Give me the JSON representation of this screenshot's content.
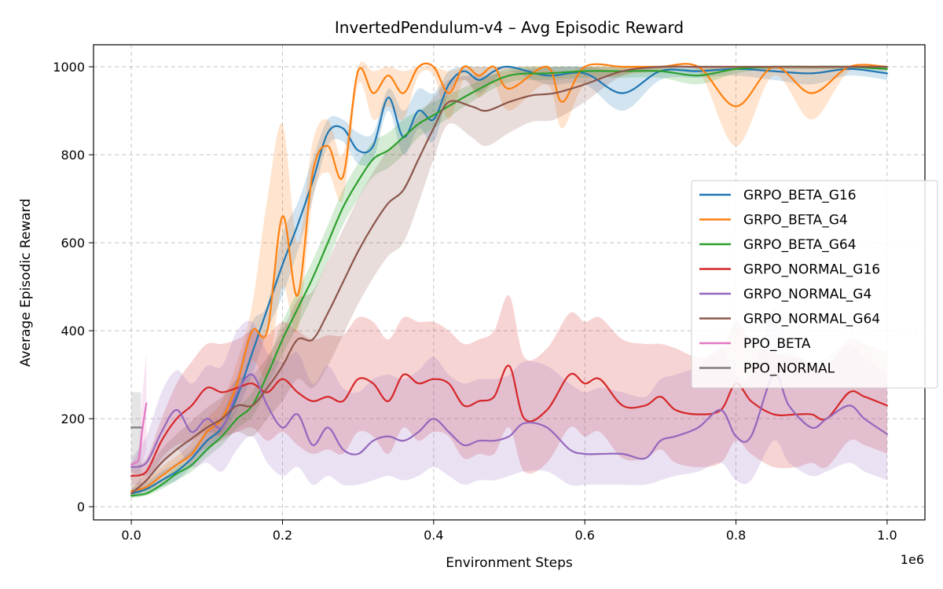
{
  "chart_data": {
    "type": "line",
    "title": "InvertedPendulum-v4 – Avg Episodic Reward",
    "xlabel": "Environment Steps",
    "ylabel": "Average Episodic Reward",
    "x_offset_label": "1e6",
    "xlim": [
      -0.05,
      1.05
    ],
    "ylim": [
      -30,
      1050
    ],
    "xticks": [
      0.0,
      0.2,
      0.4,
      0.6,
      0.8,
      1.0
    ],
    "xtick_labels": [
      "0.0",
      "0.2",
      "0.4",
      "0.6",
      "0.8",
      "1.0"
    ],
    "yticks": [
      0,
      200,
      400,
      600,
      800,
      1000
    ],
    "ytick_labels": [
      "0",
      "200",
      "400",
      "600",
      "800",
      "1000"
    ],
    "grid": true,
    "legend_position": "center-right",
    "series": [
      {
        "name": "GRPO_BETA_G16",
        "color": "#1f77b4",
        "x": [
          0.0,
          0.02,
          0.04,
          0.06,
          0.08,
          0.1,
          0.12,
          0.14,
          0.16,
          0.18,
          0.2,
          0.22,
          0.24,
          0.26,
          0.28,
          0.3,
          0.32,
          0.34,
          0.36,
          0.38,
          0.4,
          0.42,
          0.44,
          0.46,
          0.48,
          0.5,
          0.55,
          0.6,
          0.65,
          0.7,
          0.75,
          0.8,
          0.85,
          0.9,
          0.95,
          1.0
        ],
        "y": [
          30,
          40,
          60,
          80,
          110,
          150,
          180,
          250,
          350,
          450,
          550,
          640,
          740,
          850,
          860,
          810,
          820,
          930,
          840,
          900,
          880,
          960,
          990,
          970,
          990,
          1000,
          980,
          985,
          940,
          990,
          990,
          995,
          990,
          985,
          995,
          985
        ],
        "upper": [
          40,
          55,
          80,
          100,
          130,
          175,
          210,
          300,
          420,
          460,
          620,
          690,
          790,
          880,
          880,
          850,
          850,
          950,
          900,
          950,
          940,
          990,
          1000,
          1000,
          1000,
          1000,
          1000,
          1000,
          990,
          1000,
          1000,
          1000,
          1000,
          1000,
          1000,
          1000
        ],
        "lower": [
          25,
          30,
          45,
          60,
          90,
          125,
          160,
          220,
          300,
          400,
          480,
          580,
          700,
          820,
          830,
          780,
          790,
          900,
          800,
          860,
          830,
          940,
          970,
          940,
          970,
          990,
          960,
          960,
          900,
          970,
          975,
          980,
          970,
          960,
          980,
          970
        ]
      },
      {
        "name": "GRPO_BETA_G4",
        "color": "#ff7f0e",
        "x": [
          0.0,
          0.02,
          0.04,
          0.06,
          0.08,
          0.1,
          0.12,
          0.14,
          0.16,
          0.18,
          0.2,
          0.22,
          0.24,
          0.26,
          0.28,
          0.3,
          0.32,
          0.34,
          0.36,
          0.38,
          0.4,
          0.42,
          0.44,
          0.46,
          0.48,
          0.5,
          0.55,
          0.57,
          0.6,
          0.65,
          0.7,
          0.75,
          0.8,
          0.85,
          0.9,
          0.95,
          1.0
        ],
        "y": [
          35,
          45,
          70,
          95,
          120,
          170,
          200,
          280,
          400,
          400,
          660,
          480,
          760,
          820,
          750,
          990,
          940,
          980,
          940,
          1000,
          1000,
          940,
          1000,
          980,
          1000,
          950,
          1000,
          920,
          1000,
          1000,
          1000,
          1000,
          910,
          1000,
          940,
          1000,
          1000
        ],
        "upper": [
          45,
          60,
          90,
          115,
          145,
          200,
          240,
          330,
          460,
          700,
          870,
          600,
          830,
          880,
          800,
          1000,
          990,
          1000,
          990,
          1000,
          1000,
          990,
          1000,
          1000,
          1000,
          1000,
          1000,
          980,
          1000,
          1000,
          1000,
          1000,
          1000,
          1000,
          1000,
          1000,
          1000
        ],
        "lower": [
          30,
          35,
          55,
          80,
          100,
          145,
          170,
          240,
          330,
          300,
          500,
          400,
          700,
          760,
          700,
          960,
          880,
          910,
          880,
          980,
          980,
          880,
          970,
          930,
          960,
          900,
          960,
          860,
          960,
          980,
          990,
          990,
          820,
          980,
          880,
          990,
          990
        ]
      },
      {
        "name": "GRPO_BETA_G64",
        "color": "#2ca02c",
        "x": [
          0.0,
          0.02,
          0.04,
          0.06,
          0.08,
          0.1,
          0.12,
          0.14,
          0.16,
          0.18,
          0.2,
          0.22,
          0.24,
          0.26,
          0.28,
          0.3,
          0.32,
          0.34,
          0.36,
          0.38,
          0.4,
          0.45,
          0.5,
          0.55,
          0.6,
          0.65,
          0.7,
          0.75,
          0.8,
          0.85,
          0.9,
          0.95,
          1.0
        ],
        "y": [
          25,
          30,
          50,
          75,
          95,
          130,
          160,
          200,
          230,
          300,
          380,
          450,
          520,
          600,
          680,
          740,
          790,
          810,
          840,
          870,
          890,
          940,
          980,
          985,
          990,
          990,
          990,
          980,
          995,
          1000,
          1000,
          1000,
          995
        ],
        "upper": [
          30,
          38,
          62,
          90,
          112,
          150,
          180,
          225,
          260,
          330,
          420,
          490,
          560,
          640,
          720,
          780,
          830,
          850,
          880,
          900,
          920,
          960,
          995,
          1000,
          1000,
          1000,
          1000,
          995,
          1000,
          1000,
          1000,
          1000,
          1000
        ],
        "lower": [
          20,
          25,
          40,
          60,
          80,
          112,
          140,
          178,
          205,
          270,
          345,
          410,
          480,
          560,
          640,
          700,
          750,
          770,
          800,
          840,
          860,
          920,
          965,
          970,
          975,
          975,
          975,
          960,
          985,
          995,
          995,
          995,
          990
        ]
      },
      {
        "name": "GRPO_NORMAL_G16",
        "color": "#d62728",
        "x": [
          0.0,
          0.02,
          0.04,
          0.06,
          0.08,
          0.1,
          0.12,
          0.14,
          0.16,
          0.18,
          0.2,
          0.22,
          0.24,
          0.26,
          0.28,
          0.3,
          0.32,
          0.34,
          0.36,
          0.38,
          0.4,
          0.42,
          0.44,
          0.46,
          0.48,
          0.5,
          0.52,
          0.55,
          0.58,
          0.6,
          0.62,
          0.65,
          0.68,
          0.7,
          0.72,
          0.75,
          0.78,
          0.8,
          0.82,
          0.85,
          0.88,
          0.9,
          0.92,
          0.95,
          0.97,
          1.0
        ],
        "y": [
          70,
          80,
          150,
          200,
          230,
          270,
          260,
          270,
          280,
          260,
          290,
          260,
          240,
          250,
          240,
          290,
          280,
          240,
          300,
          280,
          290,
          280,
          230,
          240,
          250,
          320,
          200,
          220,
          300,
          280,
          290,
          230,
          230,
          250,
          220,
          210,
          220,
          280,
          240,
          210,
          210,
          210,
          200,
          260,
          250,
          230
        ],
        "upper": [
          90,
          110,
          200,
          280,
          330,
          370,
          370,
          380,
          400,
          390,
          420,
          400,
          380,
          390,
          390,
          430,
          420,
          380,
          430,
          420,
          420,
          400,
          370,
          380,
          400,
          480,
          340,
          360,
          440,
          420,
          430,
          380,
          370,
          370,
          360,
          340,
          360,
          420,
          380,
          350,
          340,
          330,
          320,
          380,
          370,
          350
        ],
        "lower": [
          50,
          55,
          110,
          140,
          150,
          170,
          160,
          170,
          180,
          150,
          170,
          140,
          120,
          130,
          120,
          170,
          160,
          120,
          180,
          150,
          170,
          160,
          110,
          120,
          120,
          180,
          80,
          100,
          180,
          160,
          170,
          110,
          110,
          130,
          100,
          90,
          100,
          150,
          120,
          90,
          90,
          100,
          90,
          150,
          140,
          120
        ]
      },
      {
        "name": "GRPO_NORMAL_G4",
        "color": "#9467bd",
        "x": [
          0.0,
          0.02,
          0.04,
          0.06,
          0.08,
          0.1,
          0.12,
          0.14,
          0.16,
          0.18,
          0.2,
          0.22,
          0.24,
          0.26,
          0.28,
          0.3,
          0.32,
          0.34,
          0.36,
          0.38,
          0.4,
          0.42,
          0.44,
          0.46,
          0.48,
          0.5,
          0.52,
          0.55,
          0.58,
          0.6,
          0.62,
          0.65,
          0.68,
          0.7,
          0.72,
          0.75,
          0.78,
          0.8,
          0.82,
          0.85,
          0.87,
          0.9,
          0.92,
          0.95,
          0.97,
          1.0
        ],
        "y": [
          90,
          100,
          170,
          220,
          170,
          200,
          180,
          260,
          300,
          230,
          180,
          210,
          140,
          180,
          130,
          120,
          150,
          160,
          150,
          170,
          200,
          170,
          140,
          150,
          150,
          160,
          190,
          180,
          130,
          120,
          120,
          120,
          110,
          150,
          160,
          180,
          220,
          160,
          160,
          300,
          230,
          180,
          200,
          230,
          200,
          165
        ],
        "upper": [
          110,
          160,
          260,
          310,
          280,
          320,
          320,
          400,
          420,
          350,
          330,
          350,
          280,
          320,
          270,
          260,
          290,
          300,
          290,
          310,
          340,
          300,
          280,
          290,
          290,
          300,
          330,
          320,
          280,
          260,
          270,
          260,
          250,
          290,
          300,
          320,
          360,
          300,
          300,
          450,
          370,
          320,
          340,
          370,
          340,
          300
        ],
        "lower": [
          80,
          70,
          100,
          130,
          90,
          100,
          80,
          130,
          160,
          100,
          70,
          90,
          50,
          70,
          50,
          50,
          60,
          70,
          60,
          70,
          90,
          70,
          50,
          60,
          60,
          70,
          80,
          80,
          50,
          50,
          50,
          50,
          50,
          60,
          70,
          80,
          100,
          60,
          60,
          150,
          100,
          70,
          80,
          100,
          80,
          60
        ]
      },
      {
        "name": "GRPO_NORMAL_G64",
        "color": "#8c564b",
        "x": [
          0.0,
          0.02,
          0.04,
          0.06,
          0.08,
          0.1,
          0.12,
          0.14,
          0.16,
          0.18,
          0.2,
          0.22,
          0.24,
          0.26,
          0.28,
          0.3,
          0.32,
          0.34,
          0.36,
          0.38,
          0.4,
          0.42,
          0.45,
          0.47,
          0.5,
          0.53,
          0.56,
          0.6,
          0.65,
          0.7,
          0.75,
          0.8,
          0.85,
          0.9,
          0.95,
          1.0
        ],
        "y": [
          30,
          60,
          100,
          130,
          155,
          180,
          200,
          230,
          230,
          270,
          320,
          380,
          380,
          440,
          510,
          580,
          640,
          690,
          720,
          790,
          860,
          920,
          910,
          900,
          920,
          935,
          940,
          960,
          990,
          1000,
          1000,
          1000,
          1000,
          1000,
          1000,
          1000
        ],
        "upper": [
          40,
          80,
          130,
          165,
          195,
          225,
          250,
          290,
          300,
          340,
          400,
          470,
          490,
          560,
          630,
          700,
          760,
          810,
          840,
          890,
          930,
          970,
          980,
          980,
          990,
          995,
          1000,
          1000,
          1000,
          1000,
          1000,
          1000,
          1000,
          1000,
          1000,
          1000
        ],
        "lower": [
          20,
          40,
          70,
          95,
          115,
          135,
          150,
          170,
          160,
          200,
          240,
          290,
          270,
          320,
          390,
          460,
          520,
          570,
          600,
          690,
          790,
          870,
          840,
          820,
          850,
          875,
          880,
          920,
          980,
          995,
          995,
          995,
          995,
          995,
          995,
          995
        ]
      },
      {
        "name": "PPO_BETA",
        "color": "#e377c2",
        "x": [
          0.0,
          0.005,
          0.01,
          0.015,
          0.02
        ],
        "y": [
          95,
          100,
          110,
          180,
          235
        ],
        "upper": [
          100,
          110,
          140,
          260,
          350
        ],
        "lower": [
          90,
          90,
          90,
          100,
          130
        ]
      },
      {
        "name": "PPO_NORMAL",
        "color": "#7f7f7f",
        "x": [
          0.0,
          0.005,
          0.01,
          0.013
        ],
        "y": [
          180,
          180,
          180,
          180
        ],
        "upper": [
          260,
          260,
          260,
          260
        ],
        "lower": [
          30,
          30,
          30,
          30
        ]
      }
    ]
  }
}
